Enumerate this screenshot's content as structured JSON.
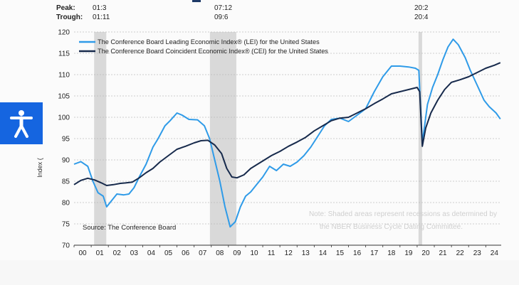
{
  "peak_trough": {
    "peak_label": "Peak:",
    "trough_label": "Trough:",
    "columns": [
      {
        "peak": "01:3",
        "trough": "01:11"
      },
      {
        "peak": "07:12",
        "trough": "09:6"
      },
      {
        "peak": "20:2",
        "trough": "20:4"
      }
    ]
  },
  "chart_data": {
    "type": "line",
    "ylabel": "Index (",
    "ylim": [
      70,
      120
    ],
    "yticks": [
      70,
      75,
      80,
      85,
      90,
      95,
      100,
      105,
      110,
      115,
      120
    ],
    "xlim": [
      2000,
      2024.9
    ],
    "xtick_labels": [
      "00",
      "01",
      "02",
      "03",
      "04",
      "05",
      "06",
      "07",
      "08",
      "09",
      "10",
      "11",
      "12",
      "13",
      "14",
      "15",
      "16",
      "17",
      "18",
      "19",
      "20",
      "21",
      "22",
      "23",
      "24"
    ],
    "grid": "horizontal dashed",
    "legend_position": "top-left",
    "recessions": [
      {
        "start": 2001.17,
        "end": 2001.88
      },
      {
        "start": 2007.92,
        "end": 2009.46
      },
      {
        "start": 2020.08,
        "end": 2020.29
      }
    ],
    "series": [
      {
        "name": "The Conference Board Leading Economic Index® (LEI) for the United States",
        "color": "#2f9be8",
        "points": [
          [
            2000.0,
            89.0
          ],
          [
            2000.4,
            89.6
          ],
          [
            2000.8,
            88.5
          ],
          [
            2001.1,
            85.0
          ],
          [
            2001.4,
            82.3
          ],
          [
            2001.7,
            81.5
          ],
          [
            2001.9,
            79.0
          ],
          [
            2002.2,
            80.5
          ],
          [
            2002.5,
            82.0
          ],
          [
            2002.9,
            81.8
          ],
          [
            2003.2,
            82.0
          ],
          [
            2003.5,
            83.5
          ],
          [
            2003.8,
            86.0
          ],
          [
            2004.2,
            89.0
          ],
          [
            2004.6,
            93.0
          ],
          [
            2004.9,
            95.0
          ],
          [
            2005.3,
            98.0
          ],
          [
            2005.6,
            99.2
          ],
          [
            2006.0,
            101.0
          ],
          [
            2006.3,
            100.5
          ],
          [
            2006.7,
            99.5
          ],
          [
            2007.2,
            99.4
          ],
          [
            2007.6,
            98.0
          ],
          [
            2007.9,
            95.0
          ],
          [
            2008.2,
            90.0
          ],
          [
            2008.5,
            85.0
          ],
          [
            2008.8,
            79.0
          ],
          [
            2009.1,
            74.3
          ],
          [
            2009.4,
            75.5
          ],
          [
            2009.7,
            79.0
          ],
          [
            2010.0,
            81.5
          ],
          [
            2010.3,
            82.5
          ],
          [
            2010.6,
            84.0
          ],
          [
            2011.0,
            86.0
          ],
          [
            2011.4,
            88.5
          ],
          [
            2011.8,
            87.5
          ],
          [
            2012.2,
            89.0
          ],
          [
            2012.6,
            88.5
          ],
          [
            2013.0,
            89.5
          ],
          [
            2013.4,
            91.0
          ],
          [
            2013.8,
            93.0
          ],
          [
            2014.2,
            95.5
          ],
          [
            2014.6,
            98.0
          ],
          [
            2015.0,
            99.5
          ],
          [
            2015.5,
            99.8
          ],
          [
            2016.0,
            99.0
          ],
          [
            2016.5,
            100.5
          ],
          [
            2017.0,
            102.0
          ],
          [
            2017.5,
            106.0
          ],
          [
            2018.0,
            109.5
          ],
          [
            2018.5,
            112.0
          ],
          [
            2019.0,
            112.0
          ],
          [
            2019.5,
            111.8
          ],
          [
            2019.9,
            111.5
          ],
          [
            2020.1,
            111.0
          ],
          [
            2020.3,
            94.0
          ],
          [
            2020.6,
            103.0
          ],
          [
            2020.9,
            107.0
          ],
          [
            2021.2,
            110.0
          ],
          [
            2021.5,
            113.5
          ],
          [
            2021.8,
            116.5
          ],
          [
            2022.1,
            118.3
          ],
          [
            2022.4,
            117.0
          ],
          [
            2022.8,
            114.0
          ],
          [
            2023.1,
            111.0
          ],
          [
            2023.5,
            107.5
          ],
          [
            2023.9,
            104.0
          ],
          [
            2024.2,
            102.5
          ],
          [
            2024.6,
            101.0
          ],
          [
            2024.85,
            99.6
          ]
        ]
      },
      {
        "name": "The Conference Board Coincident Economic Index® (CEI) for the United States",
        "color": "#172a4c",
        "points": [
          [
            2000.0,
            84.2
          ],
          [
            2000.4,
            85.2
          ],
          [
            2000.8,
            85.7
          ],
          [
            2001.2,
            85.3
          ],
          [
            2001.6,
            84.6
          ],
          [
            2001.9,
            84.0
          ],
          [
            2002.3,
            84.2
          ],
          [
            2002.7,
            84.5
          ],
          [
            2003.0,
            84.6
          ],
          [
            2003.4,
            84.8
          ],
          [
            2003.8,
            85.8
          ],
          [
            2004.2,
            87.0
          ],
          [
            2004.6,
            88.0
          ],
          [
            2005.0,
            89.5
          ],
          [
            2005.5,
            91.0
          ],
          [
            2006.0,
            92.5
          ],
          [
            2006.5,
            93.2
          ],
          [
            2007.0,
            94.0
          ],
          [
            2007.4,
            94.5
          ],
          [
            2007.8,
            94.6
          ],
          [
            2008.2,
            93.5
          ],
          [
            2008.6,
            91.5
          ],
          [
            2008.9,
            88.0
          ],
          [
            2009.2,
            86.0
          ],
          [
            2009.5,
            85.8
          ],
          [
            2009.9,
            86.5
          ],
          [
            2010.3,
            88.0
          ],
          [
            2010.7,
            89.0
          ],
          [
            2011.1,
            90.0
          ],
          [
            2011.5,
            91.0
          ],
          [
            2012.0,
            92.0
          ],
          [
            2012.5,
            93.2
          ],
          [
            2013.0,
            94.2
          ],
          [
            2013.5,
            95.3
          ],
          [
            2014.0,
            96.8
          ],
          [
            2014.5,
            98.0
          ],
          [
            2015.0,
            99.2
          ],
          [
            2015.5,
            99.8
          ],
          [
            2016.0,
            100.0
          ],
          [
            2016.5,
            101.0
          ],
          [
            2017.0,
            102.0
          ],
          [
            2017.5,
            103.2
          ],
          [
            2018.0,
            104.3
          ],
          [
            2018.5,
            105.5
          ],
          [
            2019.0,
            106.0
          ],
          [
            2019.5,
            106.5
          ],
          [
            2020.0,
            107.0
          ],
          [
            2020.15,
            106.0
          ],
          [
            2020.3,
            93.2
          ],
          [
            2020.5,
            97.5
          ],
          [
            2020.8,
            101.0
          ],
          [
            2021.2,
            104.0
          ],
          [
            2021.6,
            106.5
          ],
          [
            2022.0,
            108.2
          ],
          [
            2022.5,
            108.8
          ],
          [
            2023.0,
            109.5
          ],
          [
            2023.5,
            110.5
          ],
          [
            2024.0,
            111.5
          ],
          [
            2024.5,
            112.2
          ],
          [
            2024.85,
            112.8
          ]
        ]
      }
    ],
    "annotations": {
      "source": "Source: The Conference Board",
      "note_line1": "Note: Shaded areas represent recessions as determined by",
      "note_line2": "the NBER Business Cycle Dating Committee."
    }
  },
  "accessibility_button": {
    "icon": "accessibility-person-icon",
    "color": "#1565e0"
  }
}
